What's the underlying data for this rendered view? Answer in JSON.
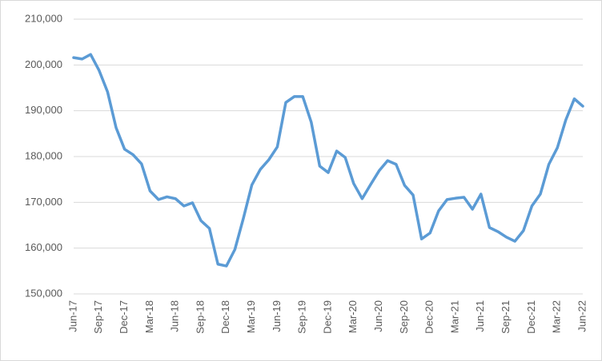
{
  "chart_data": {
    "type": "line",
    "categories": [
      "Jun-17",
      null,
      null,
      "Sep-17",
      null,
      null,
      "Dec-17",
      null,
      null,
      "Mar-18",
      null,
      null,
      "Jun-18",
      null,
      null,
      "Sep-18",
      null,
      null,
      "Dec-18",
      null,
      null,
      "Mar-19",
      null,
      null,
      "Jun-19",
      null,
      null,
      "Sep-19",
      null,
      null,
      "Dec-19",
      null,
      null,
      "Mar-20",
      null,
      null,
      "Jun-20",
      null,
      null,
      "Sep-20",
      null,
      null,
      "Dec-20",
      null,
      null,
      "Mar-21",
      null,
      null,
      "Jun-21",
      null,
      null,
      "Sep-21",
      null,
      null,
      "Dec-21",
      null,
      null,
      "Mar-22",
      null,
      null,
      "Jun-22"
    ],
    "values": [
      201600,
      201300,
      202300,
      198800,
      194100,
      186300,
      181600,
      180400,
      178400,
      172500,
      170600,
      171200,
      170800,
      169200,
      169900,
      166000,
      164300,
      156500,
      156100,
      159700,
      166500,
      173800,
      177200,
      179300,
      182100,
      191800,
      193100,
      193100,
      187500,
      177900,
      176500,
      181200,
      179800,
      174100,
      170800,
      173900,
      176900,
      179100,
      178300,
      173700,
      171600,
      162000,
      163300,
      168100,
      170600,
      170900,
      171100,
      168500,
      171800,
      164500,
      163600,
      162400,
      161500,
      163800,
      169200,
      171800,
      178300,
      181900,
      188000,
      192600,
      191000
    ],
    "color": "#5b9bd5",
    "ylim": [
      150000,
      210000
    ],
    "yticks": [
      {
        "value": 150000,
        "label": "150,000"
      },
      {
        "value": 160000,
        "label": "160,000"
      },
      {
        "value": 170000,
        "label": "170,000"
      },
      {
        "value": 180000,
        "label": "180,000"
      },
      {
        "value": 190000,
        "label": "190,000"
      },
      {
        "value": 200000,
        "label": "200,000"
      },
      {
        "value": 210000,
        "label": "210,000"
      }
    ],
    "grid": true
  }
}
